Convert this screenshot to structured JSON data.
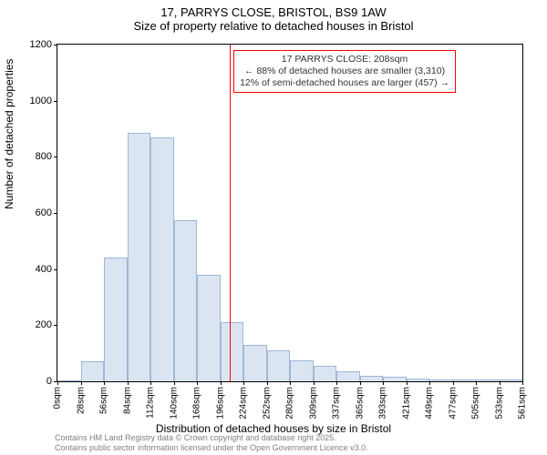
{
  "title": "17, PARRYS CLOSE, BRISTOL, BS9 1AW",
  "subtitle": "Size of property relative to detached houses in Bristol",
  "y_axis_label": "Number of detached properties",
  "x_axis_label": "Distribution of detached houses by size in Bristol",
  "footer_line1": "Contains HM Land Registry data © Crown copyright and database right 2025.",
  "footer_line2": "Contains public sector information licensed under the Open Government Licence v3.0.",
  "chart": {
    "type": "bar",
    "ylim": [
      0,
      1200
    ],
    "ytick_step": 200,
    "y_ticks": [
      0,
      200,
      400,
      600,
      800,
      1000,
      1200
    ],
    "x_tick_labels": [
      "0sqm",
      "28sqm",
      "56sqm",
      "84sqm",
      "112sqm",
      "140sqm",
      "168sqm",
      "196sqm",
      "224sqm",
      "252sqm",
      "280sqm",
      "309sqm",
      "337sqm",
      "365sqm",
      "393sqm",
      "421sqm",
      "449sqm",
      "477sqm",
      "505sqm",
      "533sqm",
      "561sqm"
    ],
    "values": [
      0,
      70,
      440,
      885,
      870,
      575,
      380,
      210,
      130,
      110,
      75,
      55,
      35,
      20,
      15,
      10,
      8,
      8,
      5,
      5
    ],
    "bar_fill": "#dbe5f1",
    "bar_stroke": "#9fb6d8",
    "background_color": "#ffffff",
    "marker": {
      "position_sqm": 208,
      "line_color": "#ff0000",
      "box_border_color": "#ff0000",
      "box_text_color": "#333333",
      "line1": "17 PARRYS CLOSE: 208sqm",
      "line2": "← 88% of detached houses are smaller (3,310)",
      "line3": "12% of semi-detached houses are larger (457) →"
    }
  }
}
